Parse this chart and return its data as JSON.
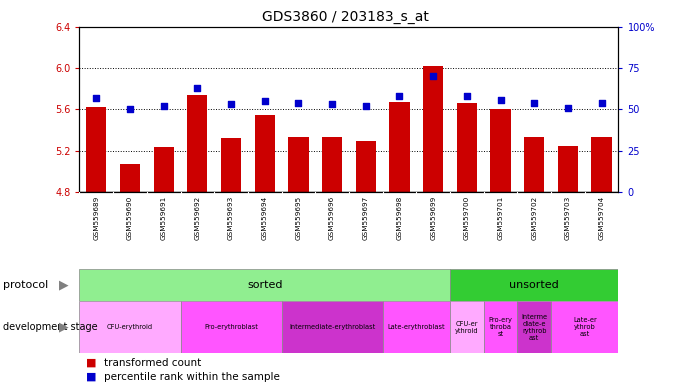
{
  "title": "GDS3860 / 203183_s_at",
  "samples": [
    "GSM559689",
    "GSM559690",
    "GSM559691",
    "GSM559692",
    "GSM559693",
    "GSM559694",
    "GSM559695",
    "GSM559696",
    "GSM559697",
    "GSM559698",
    "GSM559699",
    "GSM559700",
    "GSM559701",
    "GSM559702",
    "GSM559703",
    "GSM559704"
  ],
  "transformed_count": [
    5.62,
    5.07,
    5.24,
    5.74,
    5.32,
    5.55,
    5.33,
    5.33,
    5.29,
    5.67,
    6.02,
    5.66,
    5.6,
    5.33,
    5.25,
    5.33
  ],
  "percentile_rank": [
    57,
    50,
    52,
    63,
    53,
    55,
    54,
    53,
    52,
    58,
    70,
    58,
    56,
    54,
    51,
    54
  ],
  "bar_bottom": 4.8,
  "ylim_left": [
    4.8,
    6.4
  ],
  "ylim_right": [
    0,
    100
  ],
  "yticks_left": [
    4.8,
    5.2,
    5.6,
    6.0,
    6.4
  ],
  "yticks_right": [
    0,
    25,
    50,
    75,
    100
  ],
  "bar_color": "#cc0000",
  "dot_color": "#0000cc",
  "protocol_sorted_color": "#90ee90",
  "protocol_unsorted_color": "#33cc33",
  "stages": [
    {
      "label": "CFU-erythroid",
      "start": 0,
      "end": 2,
      "color": "#ffaaff"
    },
    {
      "label": "Pro-erythroblast",
      "start": 3,
      "end": 5,
      "color": "#ff55ff"
    },
    {
      "label": "Intermediate-erythroblast",
      "start": 6,
      "end": 8,
      "color": "#cc33cc"
    },
    {
      "label": "Late-erythroblast",
      "start": 9,
      "end": 10,
      "color": "#ff55ff"
    },
    {
      "label": "CFU-er\nythroid",
      "start": 11,
      "end": 11,
      "color": "#ffaaff"
    },
    {
      "label": "Pro-ery\nthroba\nst",
      "start": 12,
      "end": 12,
      "color": "#ff55ff"
    },
    {
      "label": "Interme\ndiate-e\nrythrob\nast",
      "start": 13,
      "end": 13,
      "color": "#cc33cc"
    },
    {
      "label": "Late-er\nythrob\nast",
      "start": 14,
      "end": 15,
      "color": "#ff55ff"
    }
  ],
  "grid_yticks": [
    5.2,
    5.6,
    6.0
  ]
}
